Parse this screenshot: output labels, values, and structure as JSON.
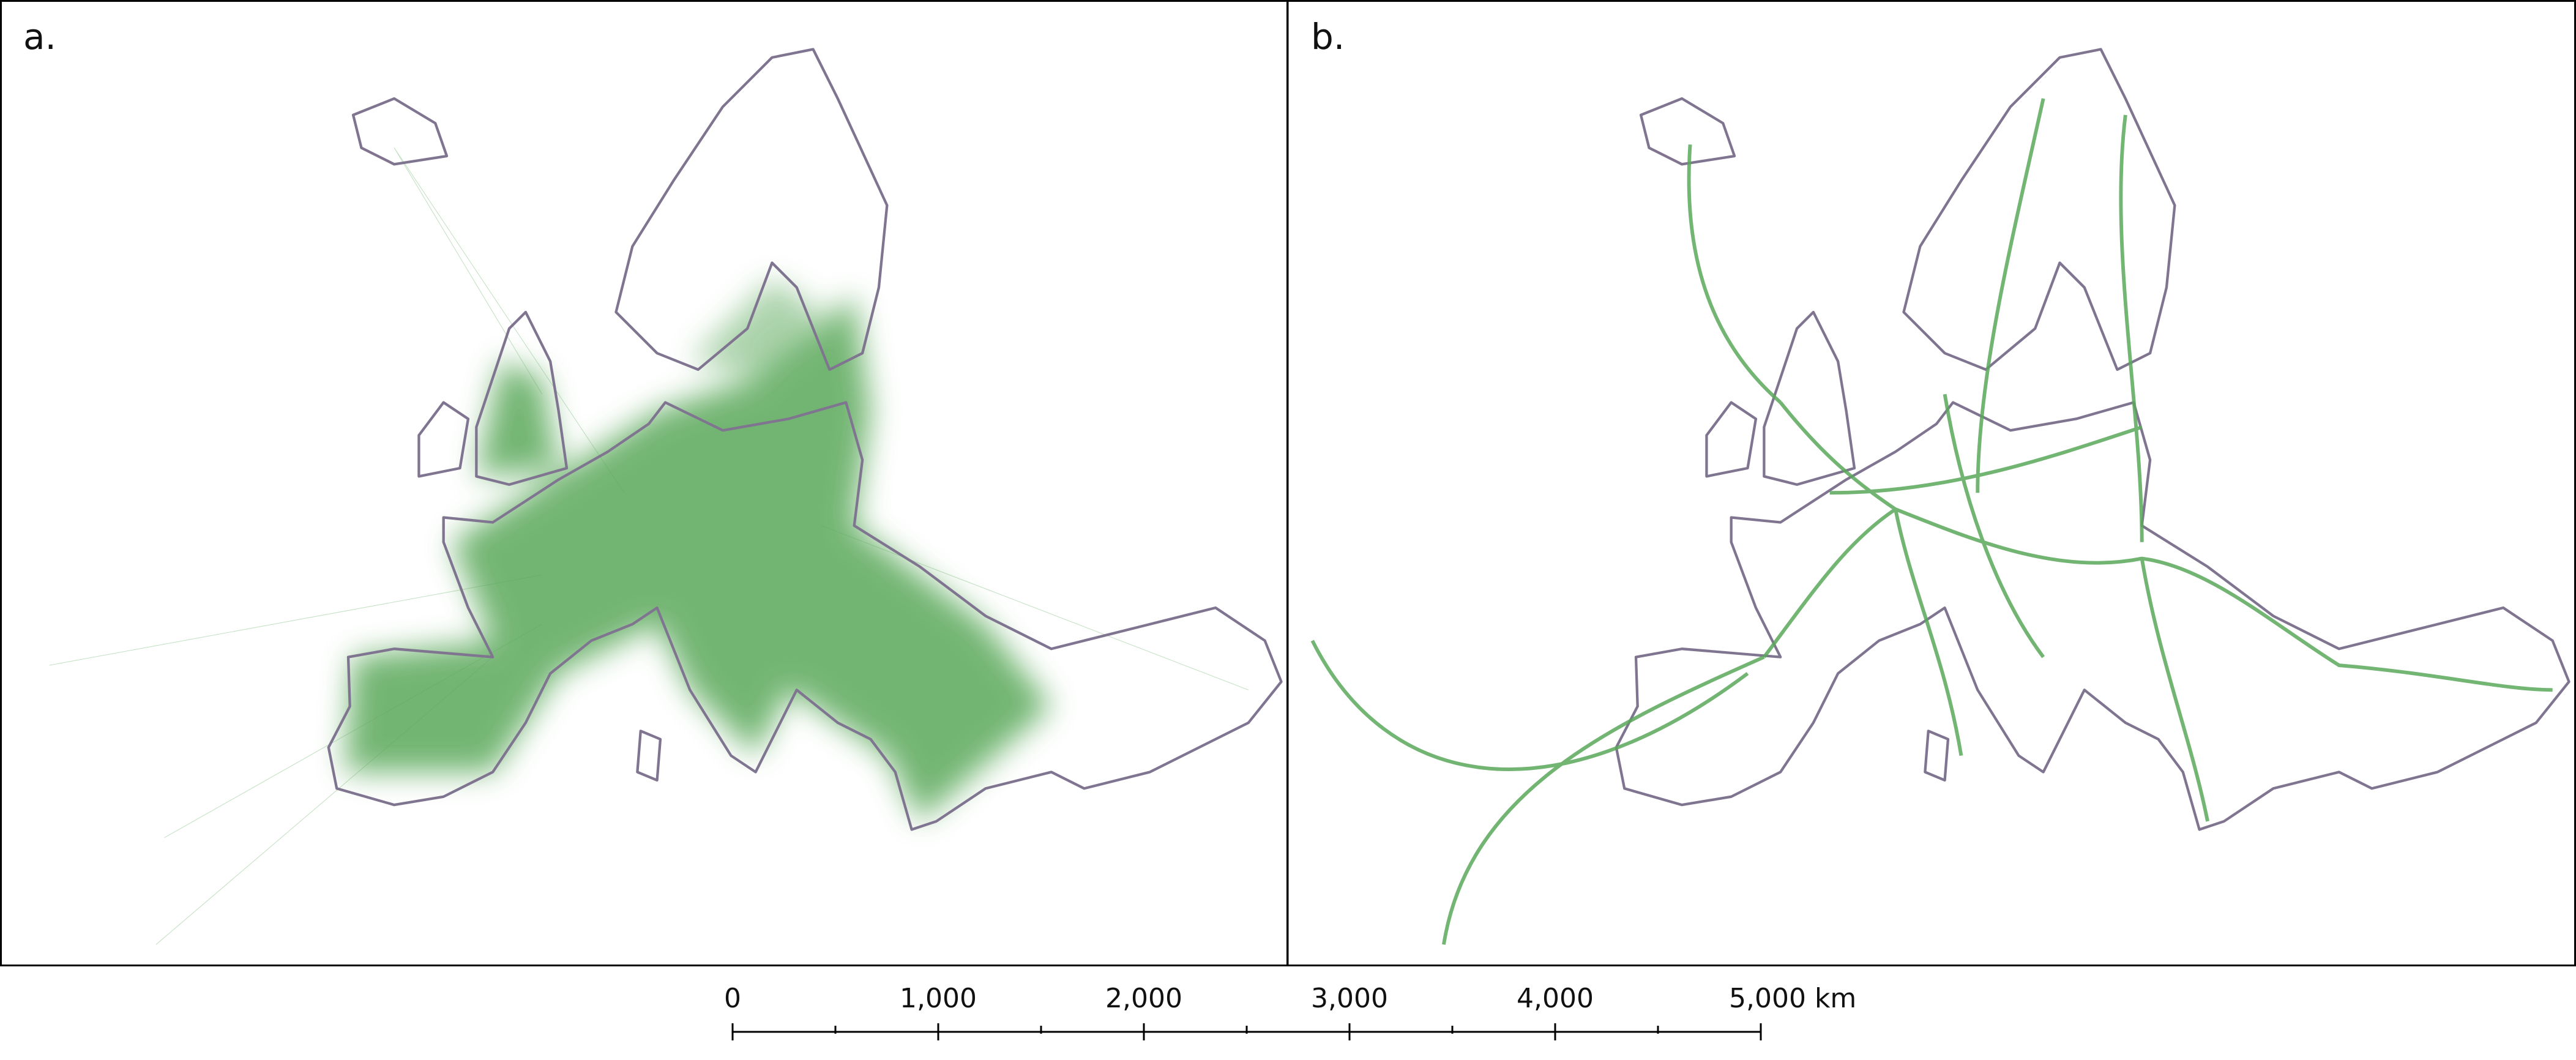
{
  "panels": [
    {
      "label": "a."
    },
    {
      "label": "b."
    }
  ],
  "scale_bar": {
    "ticks": [
      0,
      {
        "value": 1000,
        "label": "1,000"
      },
      {
        "value": 2000,
        "label": "2,000"
      },
      {
        "value": 3000,
        "label": "3,000"
      },
      {
        "value": 4000,
        "label": "4,000"
      },
      {
        "value": 5000,
        "label": "5,000 km"
      }
    ],
    "minor_ticks": [
      500,
      1500,
      2500,
      3500,
      4500
    ]
  }
}
